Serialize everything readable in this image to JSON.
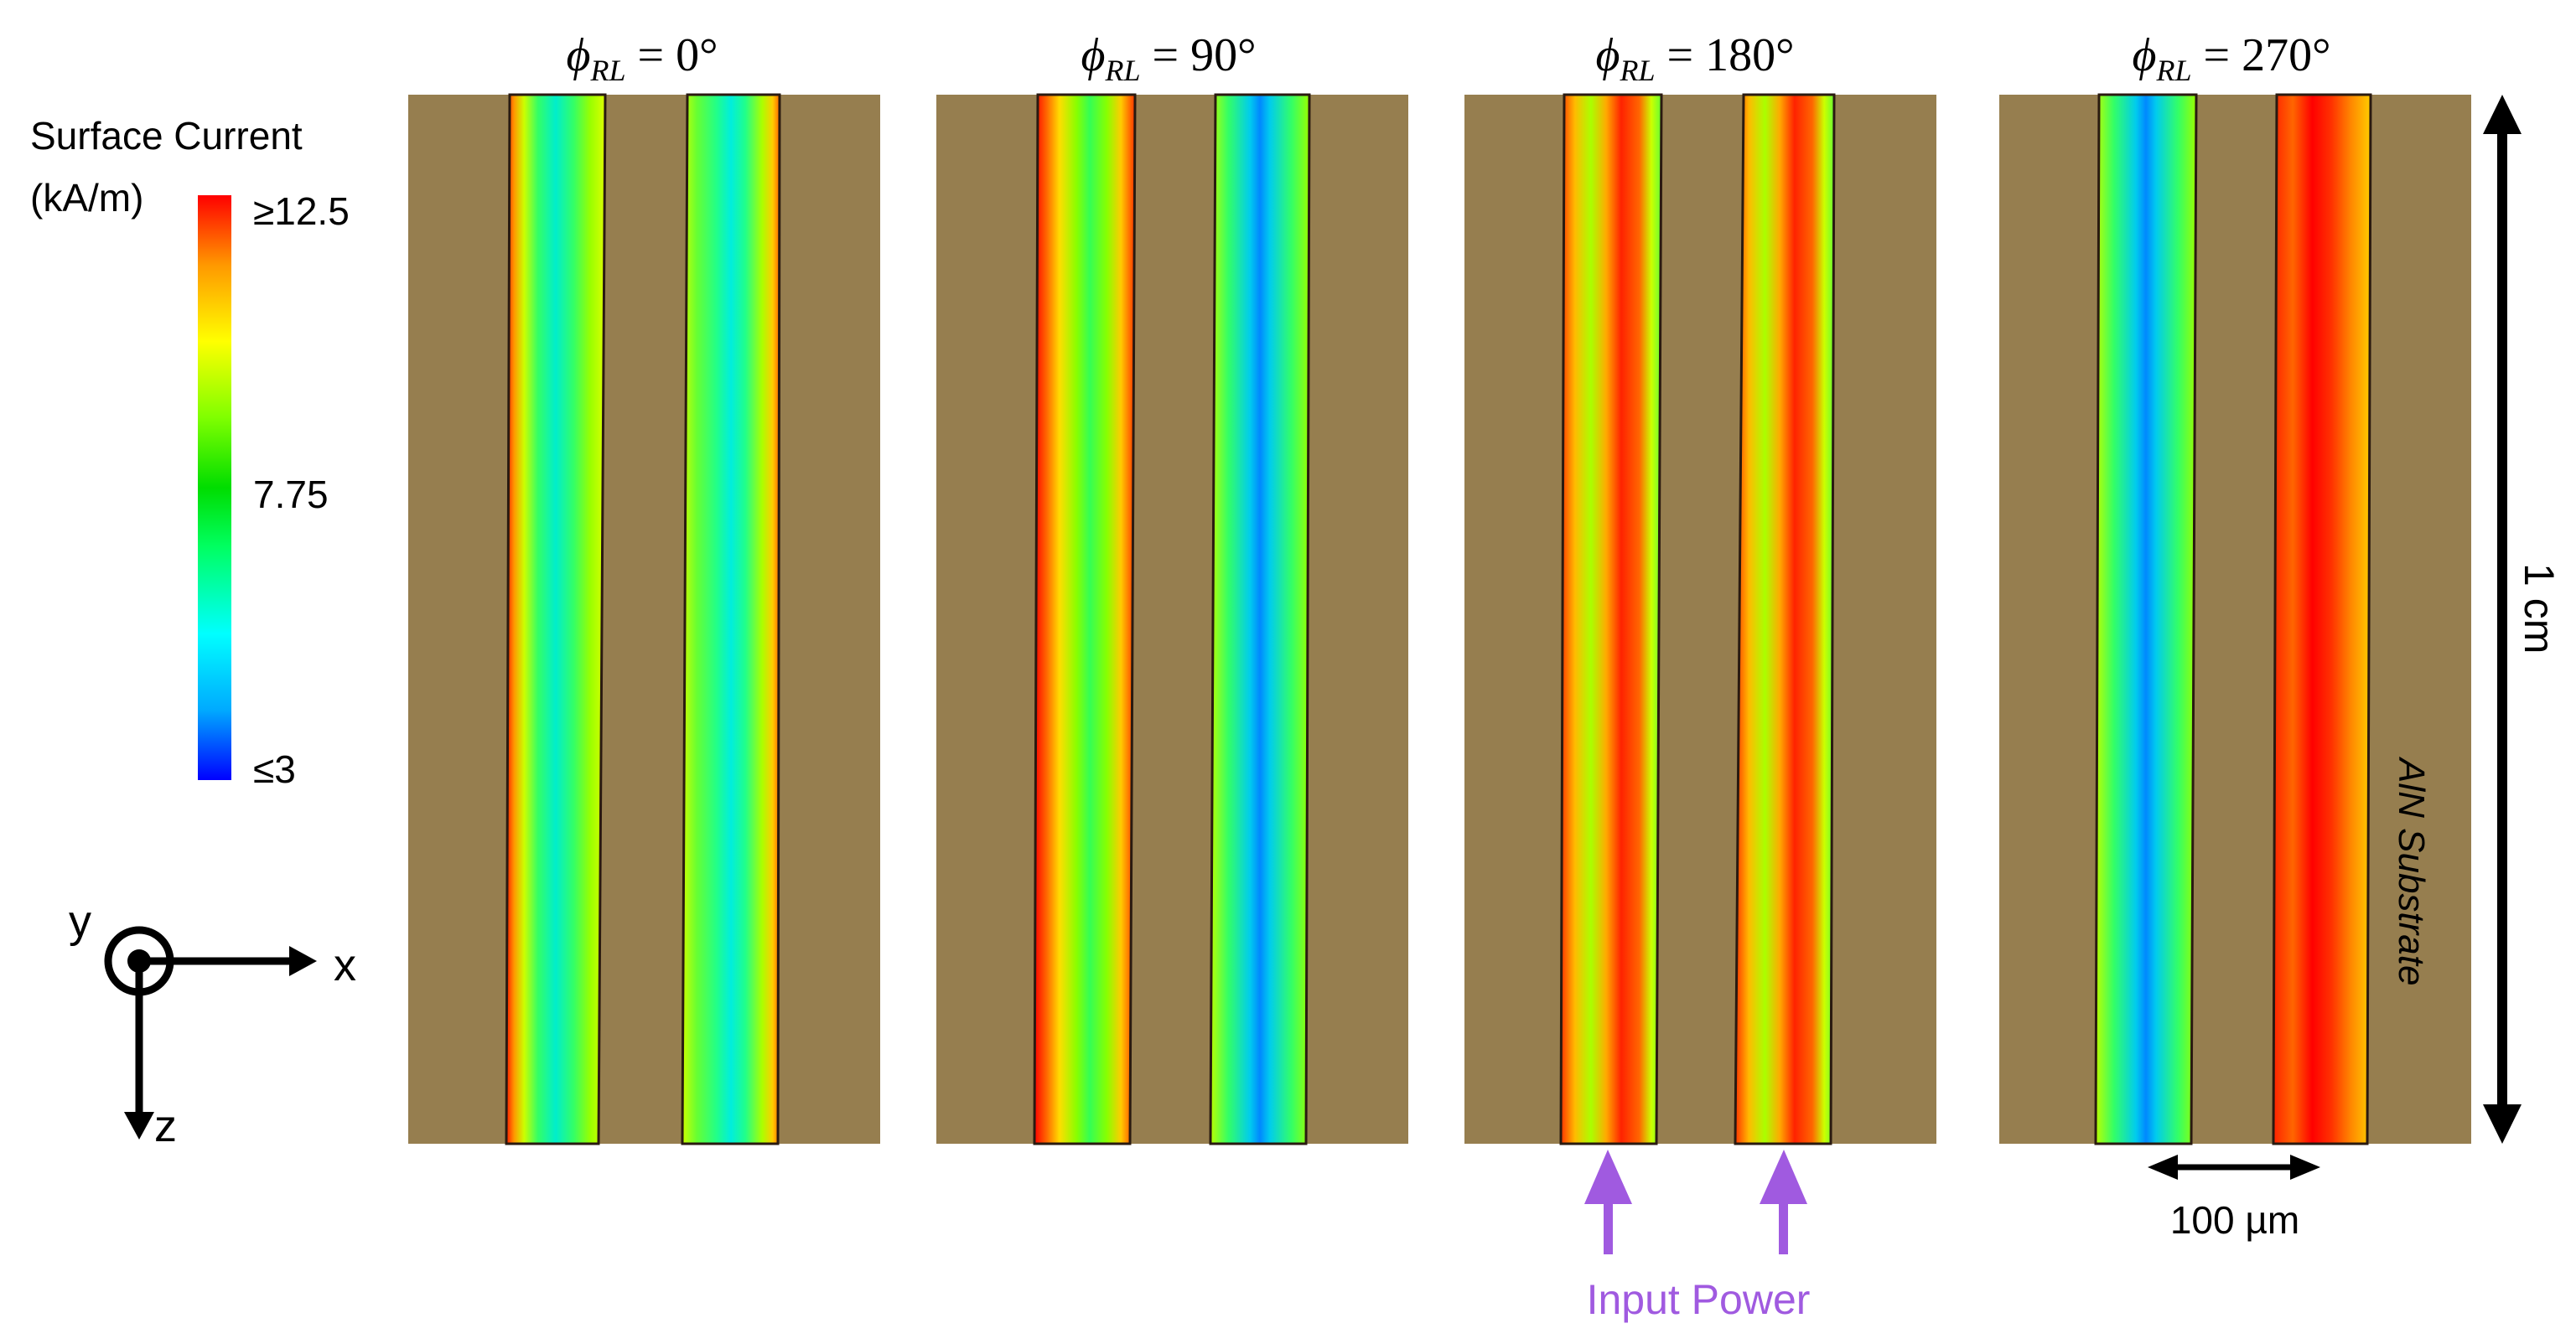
{
  "colorbar": {
    "title_line1": "Surface Current",
    "title_line2": "(kA/m)",
    "max_label": "≥12.5",
    "mid_label": "7.75",
    "min_label": "≤3",
    "max_value": 12.5,
    "mid_value": 7.75,
    "min_value": 3,
    "colors": [
      "#0000ff",
      "#00aaff",
      "#00ffff",
      "#00ff60",
      "#00dd00",
      "#80ff00",
      "#ffff00",
      "#ff9900",
      "#ff0000"
    ]
  },
  "panels": [
    {
      "phi_symbol": "ϕ",
      "phi_subscript": "RL",
      "phi_value": "= 0°"
    },
    {
      "phi_symbol": "ϕ",
      "phi_subscript": "RL",
      "phi_value": "= 90°"
    },
    {
      "phi_symbol": "ϕ",
      "phi_subscript": "RL",
      "phi_value": "= 180°"
    },
    {
      "phi_symbol": "ϕ",
      "phi_subscript": "RL",
      "phi_value": "= 270°"
    }
  ],
  "axes": {
    "y": "y",
    "x": "x",
    "z": "z"
  },
  "annotations": {
    "length_label": "1 cm",
    "width_label": "100 µm",
    "substrate_label": "AlN Substrate",
    "input_label": "Input Power"
  },
  "colors": {
    "substrate": "#967e4f",
    "input_arrow": "#a05ae0",
    "strip_edge": "#2a1a10",
    "black": "#000000"
  }
}
